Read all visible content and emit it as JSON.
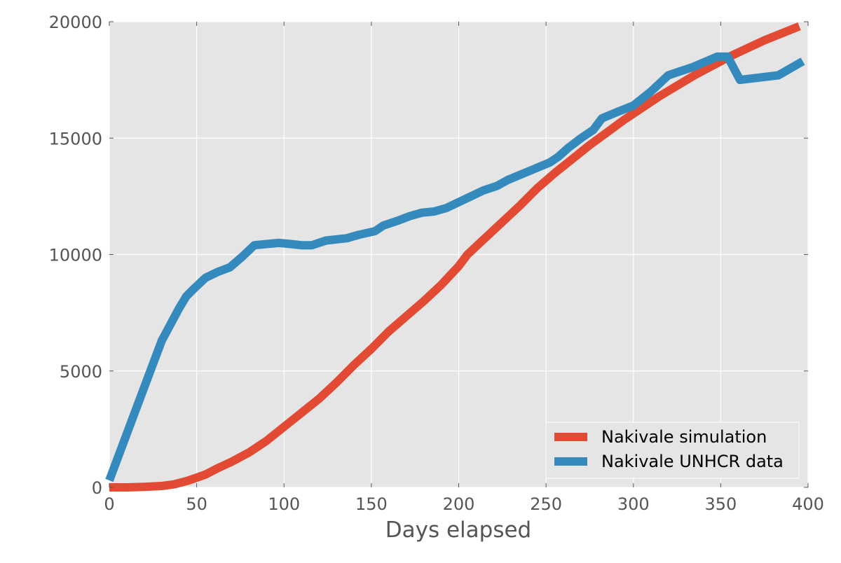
{
  "chart_data": {
    "type": "line",
    "title": "",
    "xlabel": "Days elapsed",
    "ylabel": "",
    "xlim": [
      0,
      400
    ],
    "ylim": [
      0,
      20000
    ],
    "xticks": [
      0,
      50,
      100,
      150,
      200,
      250,
      300,
      350,
      400
    ],
    "yticks": [
      0,
      5000,
      10000,
      15000,
      20000
    ],
    "xtick_labels": [
      "0",
      "50",
      "100",
      "150",
      "200",
      "250",
      "300",
      "350",
      "400"
    ],
    "ytick_labels": [
      "0",
      "5000",
      "10000",
      "15000",
      "20000"
    ],
    "grid": true,
    "legend_position": "bottom-right",
    "series": [
      {
        "name": "Nakivale simulation",
        "color": "#e24a33",
        "x": [
          0,
          10,
          20,
          30,
          37,
          45,
          55,
          62,
          70,
          80,
          90,
          100,
          110,
          120,
          130,
          140,
          150,
          160,
          170,
          180,
          190,
          200,
          205,
          215,
          225,
          235,
          245,
          255,
          265,
          275,
          285,
          295,
          305,
          315,
          325,
          335,
          345,
          355,
          365,
          375,
          385,
          395
        ],
        "y": [
          0,
          0,
          20,
          60,
          130,
          290,
          550,
          820,
          1100,
          1500,
          2000,
          2600,
          3200,
          3800,
          4500,
          5250,
          5950,
          6700,
          7350,
          8000,
          8700,
          9500,
          10000,
          10700,
          11400,
          12100,
          12850,
          13500,
          14100,
          14700,
          15250,
          15800,
          16300,
          16800,
          17250,
          17700,
          18100,
          18500,
          18850,
          19200,
          19500,
          19800
        ]
      },
      {
        "name": "Nakivale UNHCR data",
        "color": "#348abd",
        "x": [
          0,
          10,
          20,
          30,
          40,
          44,
          48,
          55,
          62,
          69,
          76,
          83,
          90,
          97,
          104,
          110,
          116,
          124,
          136,
          143,
          152,
          157,
          165,
          172,
          179,
          186,
          193,
          200,
          207,
          214,
          222,
          228,
          236,
          244,
          252,
          257,
          263,
          270,
          277,
          282,
          290,
          300,
          310,
          320,
          334,
          348,
          354,
          361,
          372,
          383,
          390,
          397
        ],
        "y": [
          300,
          2300,
          4300,
          6300,
          7700,
          8200,
          8500,
          9000,
          9250,
          9450,
          9900,
          10400,
          10450,
          10500,
          10450,
          10400,
          10400,
          10600,
          10700,
          10850,
          11000,
          11250,
          11450,
          11650,
          11800,
          11850,
          12000,
          12250,
          12500,
          12750,
          12950,
          13200,
          13450,
          13700,
          13950,
          14200,
          14600,
          15000,
          15350,
          15850,
          16100,
          16400,
          17000,
          17700,
          18050,
          18500,
          18500,
          17500,
          17600,
          17700,
          18000,
          18300
        ]
      }
    ]
  }
}
